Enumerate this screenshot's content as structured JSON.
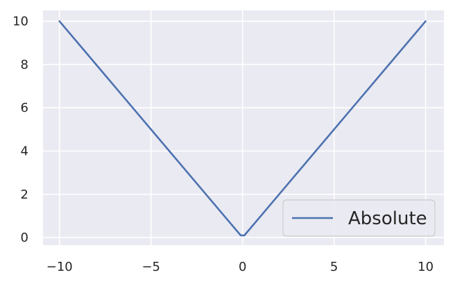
{
  "chart_data": {
    "type": "line",
    "title": "",
    "xlabel": "",
    "ylabel": "",
    "xlim": [
      -10.9,
      11.0
    ],
    "ylim": [
      -0.35,
      10.5
    ],
    "xticks": [
      -10,
      -5,
      0,
      5,
      10
    ],
    "yticks": [
      0,
      2,
      4,
      6,
      8,
      10
    ],
    "xtick_labels": [
      "−10",
      "−5",
      "0",
      "5",
      "10"
    ],
    "ytick_labels": [
      "0",
      "2",
      "4",
      "6",
      "8",
      "10"
    ],
    "grid": true,
    "legend_position": "lower-right",
    "series": [
      {
        "name": "Absolute",
        "color": "#4c72b0",
        "x": [
          -10,
          -8,
          -6,
          -4,
          -2,
          -0.1,
          0.1,
          2,
          4,
          6,
          8,
          10
        ],
        "y": [
          10,
          8,
          6,
          4,
          2,
          0.1,
          0.1,
          2,
          4,
          6,
          8,
          10
        ]
      }
    ]
  },
  "colors": {
    "plot_background": "#eaeaf2",
    "grid": "#ffffff",
    "line": "#4c72b0"
  }
}
